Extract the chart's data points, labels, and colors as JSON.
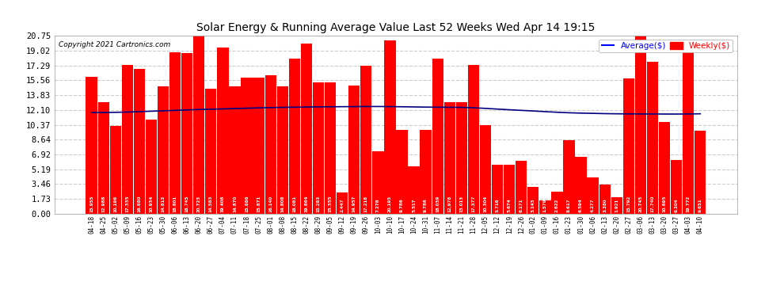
{
  "title": "Solar Energy & Running Average Value Last 52 Weeks Wed Apr 14 19:15",
  "copyright": "Copyright 2021 Cartronics.com",
  "bar_color": "#ff0000",
  "avg_line_color": "#0000ff",
  "background_color": "#ffffff",
  "grid_color": "#cccccc",
  "ylim": [
    0,
    20.75
  ],
  "yticks": [
    0.0,
    1.73,
    3.46,
    5.19,
    6.92,
    8.64,
    10.37,
    12.1,
    13.83,
    15.56,
    17.29,
    19.02,
    20.75
  ],
  "legend_avg": "Average($)",
  "legend_weekly": "Weekly($)",
  "x_labels": [
    "04-18",
    "04-25",
    "05-02",
    "05-09",
    "05-16",
    "05-23",
    "05-30",
    "06-06",
    "06-13",
    "06-20",
    "06-27",
    "07-04",
    "07-11",
    "07-18",
    "07-25",
    "08-01",
    "08-08",
    "08-15",
    "08-22",
    "08-29",
    "09-05",
    "09-12",
    "09-19",
    "09-26",
    "10-03",
    "10-10",
    "10-17",
    "10-24",
    "10-31",
    "11-07",
    "11-14",
    "11-21",
    "11-28",
    "12-05",
    "12-12",
    "12-19",
    "12-26",
    "01-02",
    "01-09",
    "01-16",
    "01-23",
    "01-30",
    "02-06",
    "02-13",
    "02-20",
    "02-27",
    "03-06",
    "03-13",
    "03-20",
    "03-27",
    "04-03",
    "04-10"
  ],
  "bar_values": [
    15.955,
    12.988,
    10.196,
    17.335,
    16.88,
    10.934,
    14.813,
    18.801,
    18.745,
    20.723,
    14.583,
    19.406,
    14.87,
    15.886,
    15.871,
    16.14,
    14.808,
    18.081,
    19.864,
    15.283,
    15.355,
    2.447,
    14.957,
    17.218,
    7.278,
    20.195,
    9.786,
    5.517,
    9.786,
    18.039,
    12.978,
    13.013,
    17.377,
    10.304,
    5.716,
    5.674,
    6.171,
    3.143,
    1.579,
    2.622,
    8.617,
    6.594,
    4.277,
    3.38,
    1.921,
    15.792,
    20.745,
    17.74,
    10.695,
    6.304,
    19.772,
    9.651
  ],
  "avg_values": [
    11.8,
    11.8,
    11.82,
    11.85,
    11.9,
    11.95,
    12.0,
    12.05,
    12.1,
    12.15,
    12.18,
    12.22,
    12.26,
    12.3,
    12.34,
    12.37,
    12.4,
    12.42,
    12.44,
    12.46,
    12.47,
    12.48,
    12.49,
    12.5,
    12.5,
    12.49,
    12.47,
    12.45,
    12.43,
    12.42,
    12.41,
    12.4,
    12.35,
    12.28,
    12.2,
    12.12,
    12.05,
    11.98,
    11.9,
    11.83,
    11.77,
    11.73,
    11.7,
    11.67,
    11.65,
    11.64,
    11.63,
    11.63,
    11.62,
    11.62,
    11.63,
    11.65
  ]
}
